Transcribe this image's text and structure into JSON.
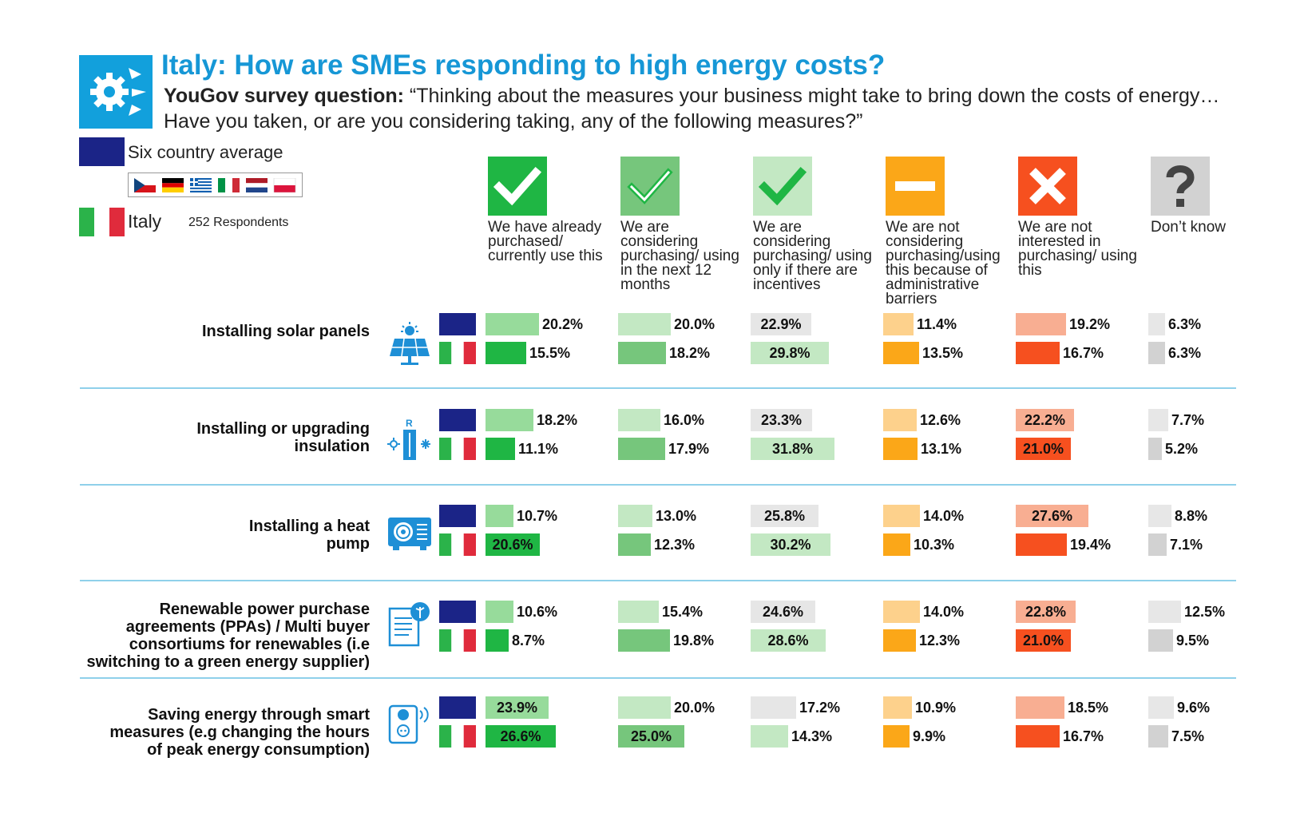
{
  "header": {
    "title": "Italy: How are SMEs responding to high energy costs?",
    "question_prefix": "YouGov survey question:",
    "question_text": " “Thinking about the measures your business might take to bring down the costs of energy… Have you taken, or are you considering taking, any of the following measures?”"
  },
  "legend": {
    "average_label": "Six country average",
    "italy_label": "Italy",
    "respondents": "252 Respondents"
  },
  "icons": {
    "title": "gear-arrows-icon",
    "columns": [
      "check-icon",
      "check-icon",
      "check-icon",
      "minus-icon",
      "cross-icon",
      "question-icon"
    ],
    "rows": [
      "solar-panel-icon",
      "insulation-icon",
      "heat-pump-icon",
      "contract-icon",
      "smart-plug-icon"
    ]
  },
  "colors": {
    "average_flag": "#1b2487",
    "separator": "#8fd0ea",
    "title": "#1697d6",
    "logo": "#12a0dc"
  },
  "chart_data": {
    "type": "bar",
    "series": [
      {
        "name": "Six country average"
      },
      {
        "name": "Italy"
      }
    ],
    "columns": [
      {
        "label": "We have already purchased/ currently use this",
        "color_avg": "#97db9b",
        "color_it": "#1fb644"
      },
      {
        "label": "We are considering purchasing/ using in the next 12 months",
        "color_avg": "#c3e8c3",
        "color_it": "#76c67c"
      },
      {
        "label": "We are considering purchasing/ using only if there are incentives",
        "color_avg": "#e6e6e6",
        "color_it": "#c3e8c3"
      },
      {
        "label": "We are not considering purchasing/using this because of administrative barriers",
        "color_avg": "#fdd18c",
        "color_it": "#fba718"
      },
      {
        "label": "We are not interested in purchasing/ using this",
        "color_avg": "#f8ae92",
        "color_it": "#f6501f"
      },
      {
        "label": "Don’t know",
        "color_avg": "#e7e7e7",
        "color_it": "#d2d2d2"
      }
    ],
    "rows": [
      {
        "label": "Installing solar panels",
        "avg": [
          20.2,
          20.0,
          22.9,
          11.4,
          19.2,
          6.3
        ],
        "it": [
          15.5,
          18.2,
          29.8,
          13.5,
          16.7,
          6.3
        ],
        "avg_labels": [
          "20.2%",
          "20.0%",
          "22.9%",
          "11.4%",
          "19.2%",
          "6.3%"
        ],
        "it_labels": [
          "15.5%",
          "18.2%",
          "29.8%",
          "13.5%",
          "16.7%",
          "6.3%"
        ]
      },
      {
        "label": "Installing or upgrading insulation",
        "avg": [
          18.2,
          16.0,
          23.3,
          12.6,
          22.2,
          7.7
        ],
        "it": [
          11.1,
          17.9,
          31.8,
          13.1,
          21.0,
          5.2
        ],
        "avg_labels": [
          "18.2%",
          "16.0%",
          "23.3%",
          "12.6%",
          "22.2%",
          "7.7%"
        ],
        "it_labels": [
          "11.1%",
          "17.9%",
          "31.8%",
          "13.1%",
          "21.0%",
          "5.2%"
        ]
      },
      {
        "label": "Installing a heat pump",
        "avg": [
          10.7,
          13.0,
          25.8,
          14.0,
          27.6,
          8.8
        ],
        "it": [
          20.6,
          12.3,
          30.2,
          10.3,
          19.4,
          7.1
        ],
        "avg_labels": [
          "10.7%",
          "13.0%",
          "25.8%",
          "14.0%",
          "27.6%",
          "8.8%"
        ],
        "it_labels": [
          "20.6%",
          "12.3%",
          "30.2%",
          "10.3%",
          "19.4%",
          "7.1%"
        ]
      },
      {
        "label": "Renewable power purchase agreements (PPAs) / Multi buyer consortiums for renewables (i.e switching to a green energy supplier)",
        "avg": [
          10.6,
          15.4,
          24.6,
          14.0,
          22.8,
          12.5
        ],
        "it": [
          8.7,
          19.8,
          28.6,
          12.3,
          21.0,
          9.5
        ],
        "avg_labels": [
          "10.6%",
          "15.4%",
          "24.6%",
          "14.0%",
          "22.8%",
          "12.5%"
        ],
        "it_labels": [
          "8.7%",
          "19.8%",
          "28.6%",
          "12.3%",
          "21.0%",
          "9.5%"
        ]
      },
      {
        "label": "Saving energy through smart measures (e.g changing the hours of peak energy consumption)",
        "avg": [
          23.9,
          20.0,
          17.2,
          10.9,
          18.5,
          9.6
        ],
        "it": [
          26.6,
          25.0,
          14.3,
          9.9,
          16.7,
          7.5
        ],
        "avg_labels": [
          "23.9%",
          "20.0%",
          "17.2%",
          "10.9%",
          "18.5%",
          "9.6%"
        ],
        "it_labels": [
          "26.6%",
          "25.0%",
          "14.3%",
          "9.9%",
          "16.7%",
          "7.5%"
        ]
      }
    ]
  }
}
